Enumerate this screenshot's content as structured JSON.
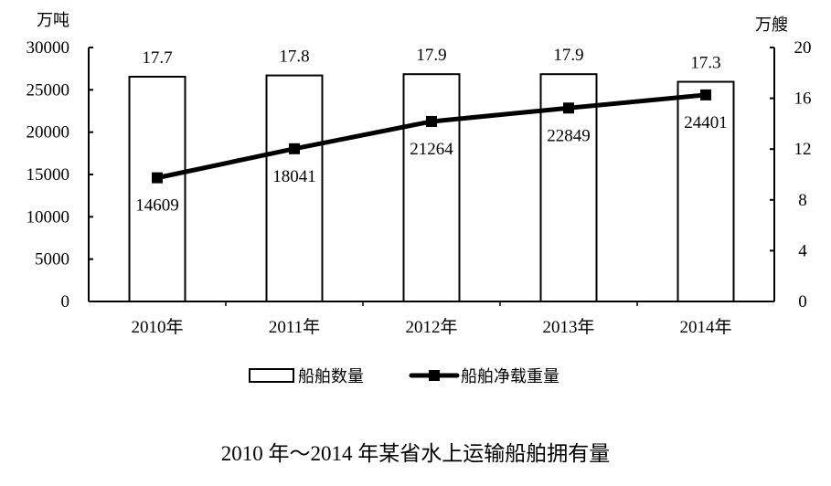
{
  "chart_data": {
    "type": "bar+line",
    "title": "2010 年～2014 年某省水上运输船舶拥有量",
    "categories": [
      "2010年",
      "2011年",
      "2012年",
      "2013年",
      "2014年"
    ],
    "series": [
      {
        "name": "船舶数量",
        "type": "bar",
        "axis": "right",
        "unit": "万艘",
        "values": [
          17.7,
          17.8,
          17.9,
          17.9,
          17.3
        ]
      },
      {
        "name": "船舶净载重量",
        "type": "line",
        "axis": "left",
        "unit": "万吨",
        "values": [
          14609,
          18041,
          21264,
          22849,
          24401
        ]
      }
    ],
    "left_axis": {
      "label": "万吨",
      "ylim": [
        0,
        30000
      ],
      "ticks": [
        0,
        5000,
        10000,
        15000,
        20000,
        25000,
        30000
      ]
    },
    "right_axis": {
      "label": "万艘",
      "ylim": [
        0,
        20
      ],
      "ticks": [
        0,
        4,
        8,
        12,
        16,
        20
      ]
    },
    "grid": false,
    "legend_position": "bottom"
  },
  "labels": {
    "left_unit": "万吨",
    "right_unit": "万艘",
    "legend_bar": "船舶数量",
    "legend_line": "船舶净载重量",
    "title": "2010 年～2014 年某省水上运输船舶拥有量"
  }
}
